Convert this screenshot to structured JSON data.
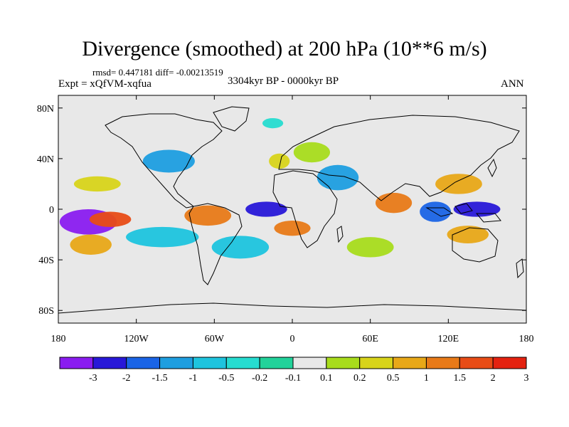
{
  "chart_data": {
    "type": "heatmap",
    "title": "Divergence (smoothed) at 200 hPa (10**6 m/s)",
    "stats": "rmsd= 0.447181 diff= -0.00213519",
    "experiment": "Expt = xQfVM-xqfua",
    "period": "3304kyr BP - 0000kyr BP",
    "season": "ANN",
    "projection": "cylindrical equidistant",
    "xlim": [
      -180,
      180
    ],
    "ylim": [
      -90,
      90
    ],
    "x_ticks": [
      {
        "value": -180,
        "label": "180"
      },
      {
        "value": -120,
        "label": "120W"
      },
      {
        "value": -60,
        "label": "60W"
      },
      {
        "value": 0,
        "label": "0"
      },
      {
        "value": 60,
        "label": "60E"
      },
      {
        "value": 120,
        "label": "120E"
      },
      {
        "value": 180,
        "label": "180"
      }
    ],
    "y_ticks": [
      {
        "value": 80,
        "label": "80N"
      },
      {
        "value": 40,
        "label": "40N"
      },
      {
        "value": 0,
        "label": "0"
      },
      {
        "value": -40,
        "label": "40S"
      },
      {
        "value": -80,
        "label": "80S"
      }
    ],
    "colorbar": {
      "levels": [
        "-3",
        "-2",
        "-1.5",
        "-1",
        "-0.5",
        "-0.2",
        "-0.1",
        "0.1",
        "0.2",
        "0.5",
        "1",
        "1.5",
        "2",
        "3"
      ],
      "colors": [
        "#8a1cf0",
        "#2818d8",
        "#1a64e6",
        "#1e9ee0",
        "#1ec4de",
        "#26dcd0",
        "#22d29a",
        "#e8e8e8",
        "#a8dc1c",
        "#d8d41a",
        "#e8a818",
        "#e87a18",
        "#e84c16",
        "#e42210"
      ]
    },
    "features": [
      {
        "lon": -157,
        "lat": -10,
        "rx": 22,
        "ry": 10,
        "level": -3
      },
      {
        "lon": -20,
        "lat": 0,
        "rx": 16,
        "ry": 6,
        "level": -2
      },
      {
        "lon": 142,
        "lat": 0,
        "rx": 18,
        "ry": 6,
        "level": -2
      },
      {
        "lon": 110,
        "lat": -2,
        "rx": 12,
        "ry": 8,
        "level": -1.5
      },
      {
        "lon": -95,
        "lat": 38,
        "rx": 20,
        "ry": 9,
        "level": -1
      },
      {
        "lon": 35,
        "lat": 25,
        "rx": 16,
        "ry": 10,
        "level": -1
      },
      {
        "lon": -40,
        "lat": -30,
        "rx": 22,
        "ry": 9,
        "level": -0.5
      },
      {
        "lon": -100,
        "lat": -22,
        "rx": 28,
        "ry": 8,
        "level": -0.5
      },
      {
        "lon": -140,
        "lat": -8,
        "rx": 16,
        "ry": 6,
        "level": 2
      },
      {
        "lon": 0,
        "lat": -15,
        "rx": 14,
        "ry": 6,
        "level": 1.5
      },
      {
        "lon": -65,
        "lat": -5,
        "rx": 18,
        "ry": 8,
        "level": 1.5
      },
      {
        "lon": 78,
        "lat": 5,
        "rx": 14,
        "ry": 8,
        "level": 1.5
      },
      {
        "lon": 128,
        "lat": 20,
        "rx": 18,
        "ry": 8,
        "level": 1
      },
      {
        "lon": 135,
        "lat": -20,
        "rx": 16,
        "ry": 7,
        "level": 1
      },
      {
        "lon": -155,
        "lat": -28,
        "rx": 16,
        "ry": 8,
        "level": 1
      },
      {
        "lon": -10,
        "lat": 38,
        "rx": 8,
        "ry": 6,
        "level": 0.5
      },
      {
        "lon": -150,
        "lat": 20,
        "rx": 18,
        "ry": 6,
        "level": 0.5
      },
      {
        "lon": 60,
        "lat": -30,
        "rx": 18,
        "ry": 8,
        "level": 0.2
      },
      {
        "lon": 15,
        "lat": 45,
        "rx": 14,
        "ry": 8,
        "level": 0.2
      },
      {
        "lon": -15,
        "lat": 68,
        "rx": 8,
        "ry": 4,
        "level": -0.2
      }
    ]
  },
  "icons": {
    "map_outline": "world-coastlines"
  }
}
